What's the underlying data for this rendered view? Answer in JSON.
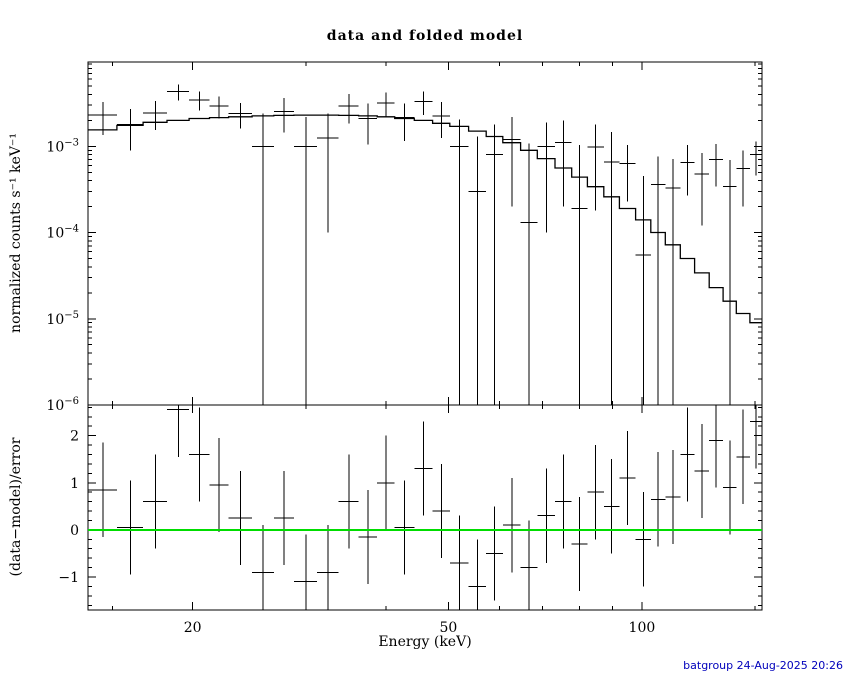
{
  "title": "data and folded model",
  "footer": "batgroup 24-Aug-2025 20:26",
  "chart_data": {
    "type": "scatter",
    "title": "data and folded model",
    "xlabel": "Energy (keV)",
    "ylabel": "normalized counts s⁻¹ keV⁻¹",
    "ylabel_residuals": "(data−model)/error",
    "xscale": "log",
    "yscale": "log",
    "xlim": [
      13.75,
      153.75
    ],
    "ylim": [
      1e-06,
      0.0095
    ],
    "residual_ylim": [
      -1.7,
      2.65
    ],
    "x_major_ticks": [
      20,
      50,
      100
    ],
    "x_minor_ticks": [
      15,
      30,
      40,
      60,
      70,
      80,
      90,
      150
    ],
    "y_major_ticks": [
      1e-06,
      1e-05,
      0.0001,
      0.001
    ],
    "residual_major_ticks": [
      -1,
      0,
      1,
      2
    ],
    "grid": false,
    "legend": false,
    "colors": {
      "data": "#000000",
      "model": "#000000",
      "zero_line": "#00dd00",
      "footer": "#0000bb"
    },
    "model_step": {
      "edges": [
        13.75,
        15.25,
        16.75,
        18.25,
        19.75,
        21.25,
        22.75,
        24.75,
        26.75,
        28.75,
        31.25,
        33.75,
        36.25,
        38.75,
        41.25,
        44.25,
        47.25,
        50.25,
        53.75,
        57.25,
        60.75,
        64.75,
        68.75,
        73.25,
        77.75,
        82.25,
        87.25,
        92.25,
        97.75,
        103.25,
        108.75,
        114.75,
        120.75,
        127.25,
        133.75,
        140.25,
        147.25,
        153.75
      ],
      "values": [
        0.00155,
        0.00175,
        0.0019,
        0.002,
        0.0021,
        0.00215,
        0.0022,
        0.00225,
        0.00228,
        0.0023,
        0.0023,
        0.00228,
        0.00225,
        0.0022,
        0.0021,
        0.002,
        0.00185,
        0.0017,
        0.0015,
        0.0013,
        0.0011,
        0.0009,
        0.00072,
        0.00056,
        0.00044,
        0.00034,
        0.00026,
        0.00019,
        0.00014,
        0.0001,
        7.2e-05,
        5e-05,
        3.4e-05,
        2.3e-05,
        1.6e-05,
        1.15e-05,
        9e-06
      ]
    },
    "points": {
      "x": [
        14.5,
        16,
        17.5,
        19,
        20.5,
        22,
        23.75,
        25.75,
        27.75,
        30,
        32.5,
        35,
        37.5,
        40,
        42.75,
        45.75,
        48.75,
        52,
        55.5,
        59,
        62.75,
        66.75,
        71,
        75.5,
        80,
        84.75,
        89.75,
        95,
        100.5,
        106,
        111.75,
        117.75,
        124,
        130.5,
        137,
        143.75,
        150.5
      ],
      "xerr": [
        0.75,
        0.75,
        0.75,
        0.75,
        0.75,
        0.75,
        1,
        1,
        1,
        1.25,
        1.25,
        1.25,
        1.25,
        1.25,
        1.5,
        1.5,
        1.5,
        1.75,
        1.75,
        1.75,
        2,
        2,
        2.25,
        2.25,
        2.25,
        2.5,
        2.5,
        2.75,
        2.75,
        2.75,
        3,
        3,
        3.25,
        3.25,
        3.25,
        3.5,
        3.25
      ],
      "y": [
        0.0023,
        0.0018,
        0.00245,
        0.0043,
        0.00345,
        0.00295,
        0.0024,
        0.001,
        0.00255,
        0.001,
        0.00125,
        0.00295,
        0.0021,
        0.0032,
        0.00215,
        0.0033,
        0.00225,
        0.001,
        0.0003,
        0.0008,
        0.0012,
        0.00013,
        0.001,
        0.0011,
        0.00019,
        0.00098,
        0.00066,
        0.00063,
        5.5e-05,
        0.00036,
        0.00033,
        0.00065,
        0.00048,
        0.0007,
        0.00034,
        0.00055,
        0.0008
      ],
      "yerr": [
        0.00095,
        0.0009,
        0.0009,
        0.0009,
        0.00085,
        0.00085,
        0.0008,
        0.0014,
        0.0011,
        0.0012,
        0.00115,
        0.0011,
        0.00105,
        0.001,
        0.001,
        0.001,
        0.001,
        0.00105,
        0.001,
        0.001,
        0.001,
        0.00095,
        0.0009,
        0.0009,
        0.00085,
        0.0008,
        0.0008,
        0.0004,
        0.0004,
        0.0004,
        0.00038,
        0.00038,
        0.00036,
        0.00036,
        0.00035,
        0.00035,
        0.00034
      ]
    },
    "residuals": {
      "y": [
        0.85,
        0.05,
        0.6,
        2.55,
        1.6,
        0.95,
        0.25,
        -0.9,
        0.25,
        -1.1,
        -0.9,
        0.6,
        -0.15,
        1.0,
        0.05,
        1.3,
        0.4,
        -0.7,
        -1.2,
        -0.5,
        0.1,
        -0.8,
        0.3,
        0.6,
        -0.3,
        0.8,
        0.5,
        1.1,
        -0.2,
        0.65,
        0.7,
        1.6,
        1.25,
        1.9,
        0.9,
        1.55,
        2.3
      ],
      "yerr": 1.0
    }
  }
}
